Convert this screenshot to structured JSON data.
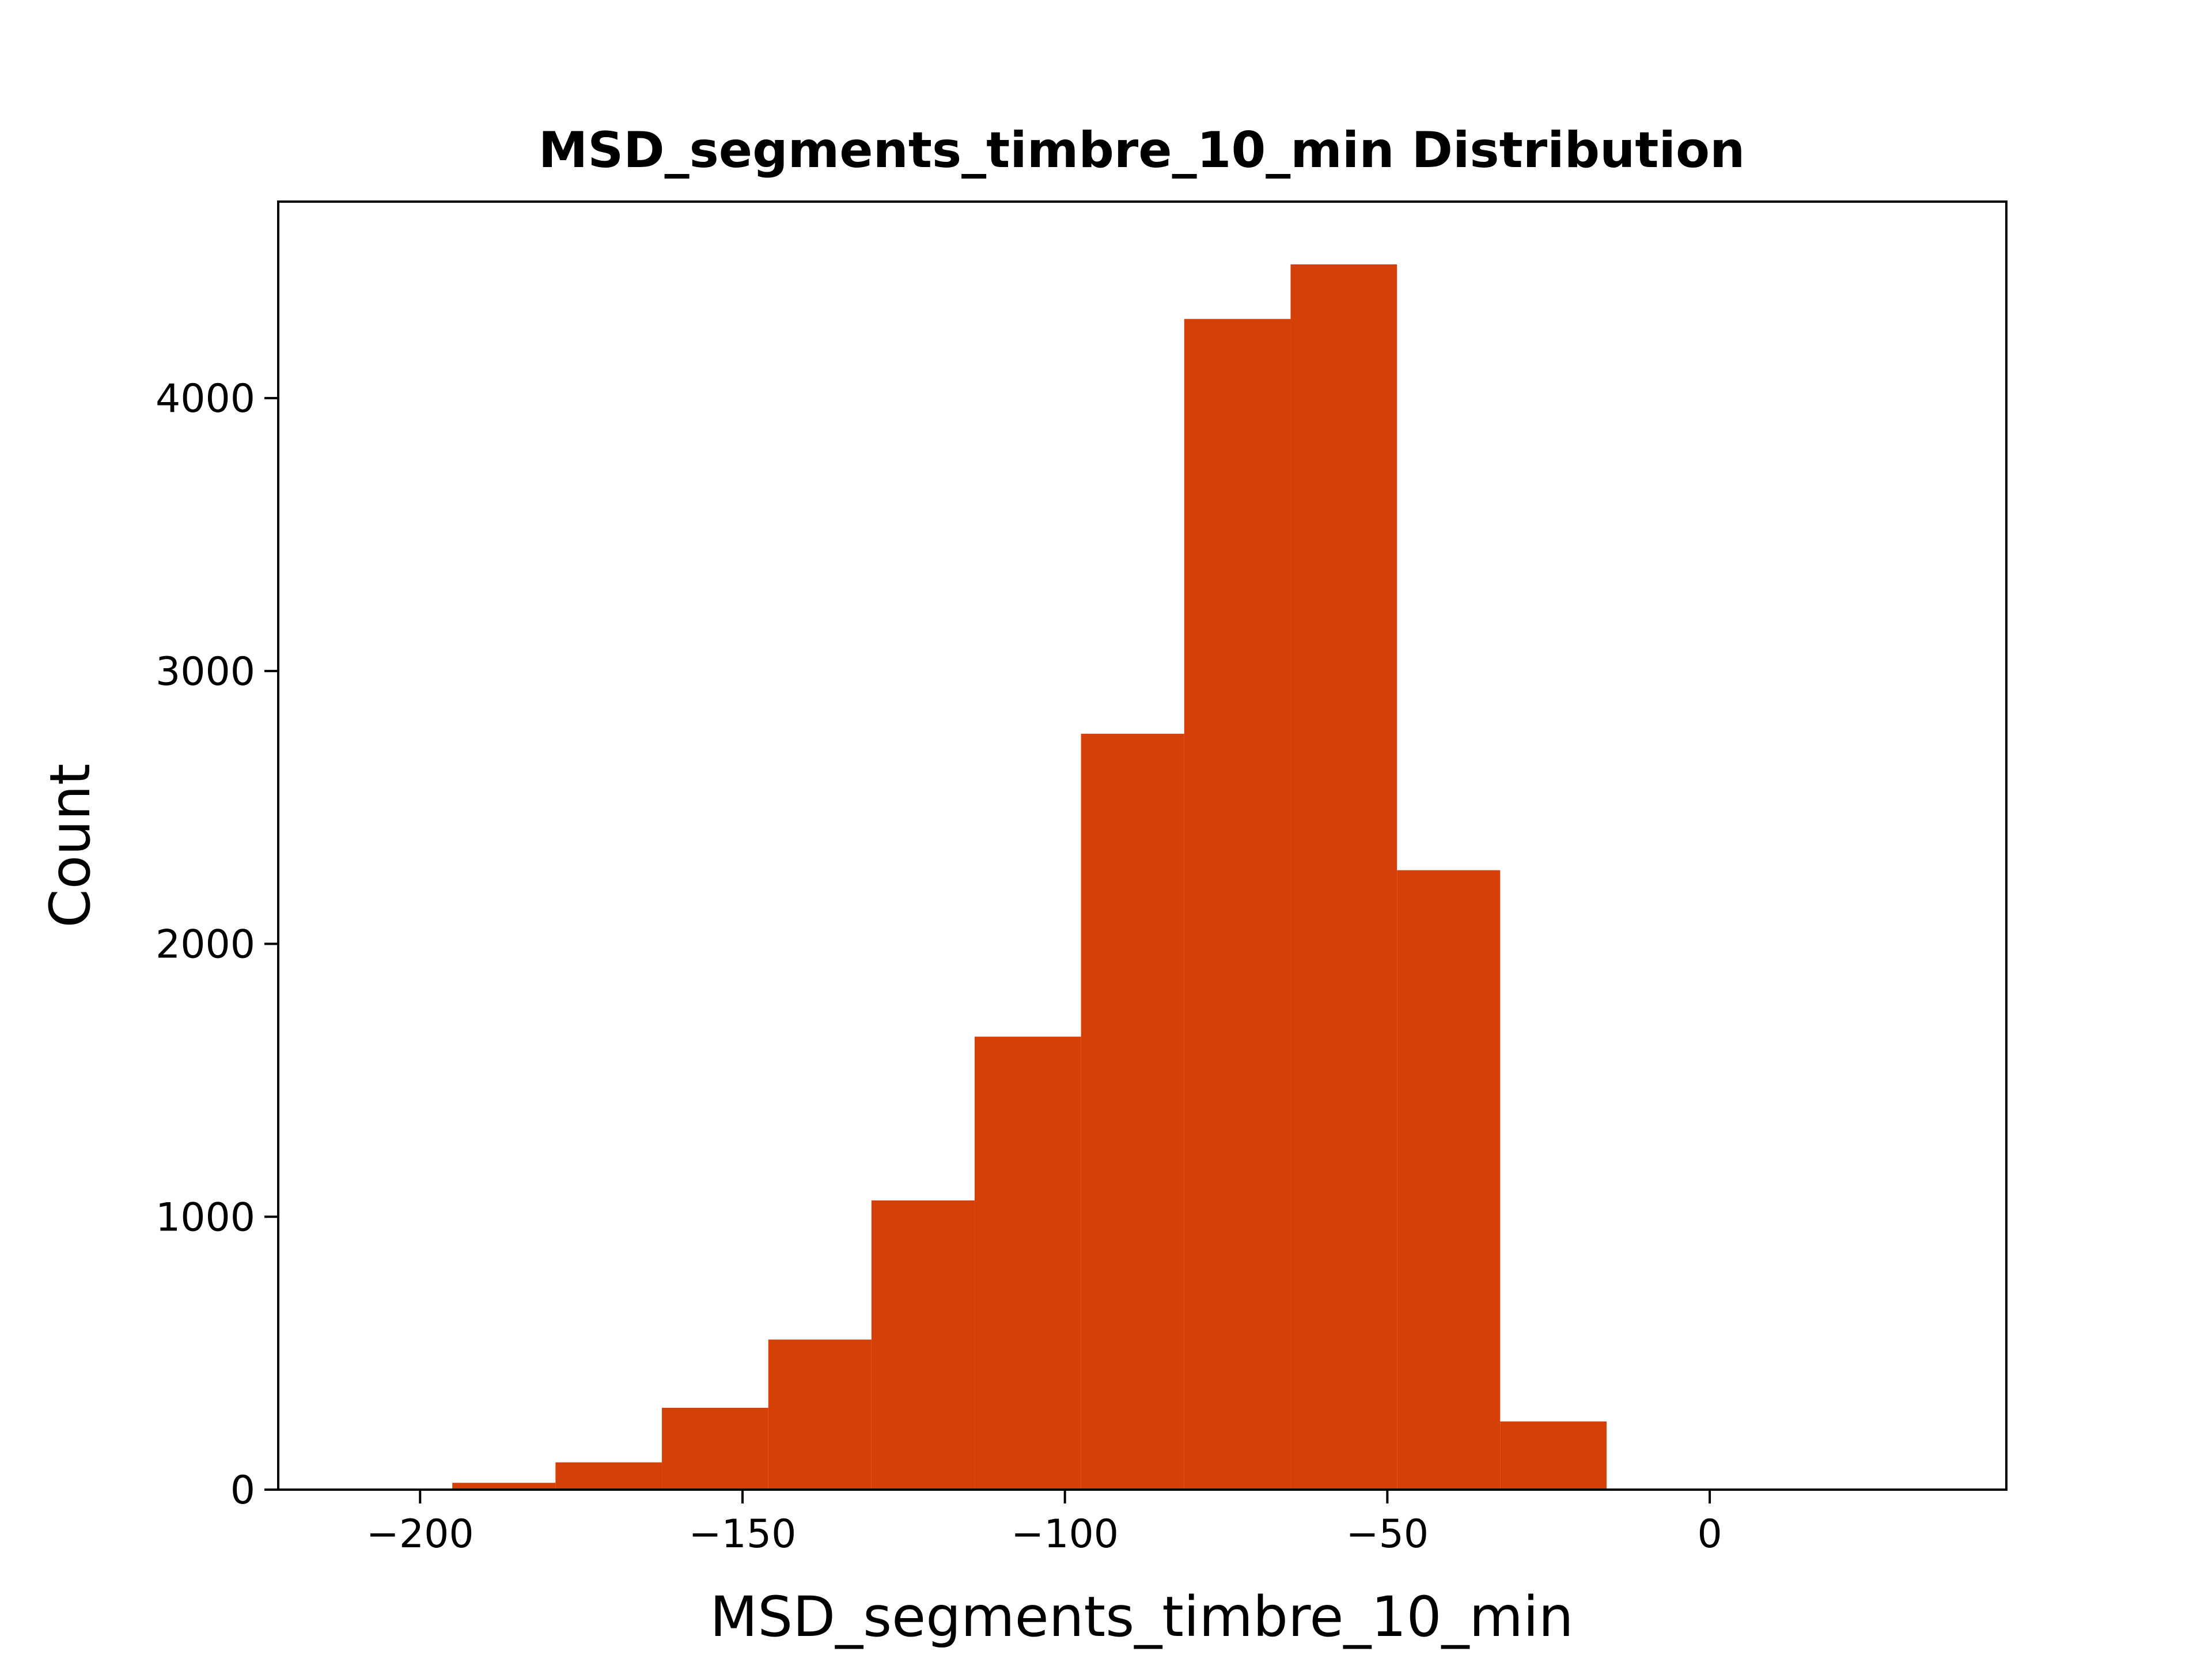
{
  "chart_data": {
    "type": "bar",
    "title": "MSD_segments_timbre_10_min Distribution",
    "xlabel": "MSD_segments_timbre_10_min",
    "ylabel": "Count",
    "xlim": [
      -222,
      46
    ],
    "ylim": [
      0,
      4720
    ],
    "xticks": [
      {
        "value": -200,
        "label": "−200"
      },
      {
        "value": -150,
        "label": "−150"
      },
      {
        "value": -100,
        "label": "−100"
      },
      {
        "value": -50,
        "label": "−50"
      },
      {
        "value": 0,
        "label": "0"
      }
    ],
    "yticks": [
      {
        "value": 0,
        "label": "0"
      },
      {
        "value": 1000,
        "label": "1000"
      },
      {
        "value": 2000,
        "label": "2000"
      },
      {
        "value": 3000,
        "label": "3000"
      },
      {
        "value": 4000,
        "label": "4000"
      }
    ],
    "bins": [
      {
        "x0": -211,
        "x1": -195,
        "count": 3
      },
      {
        "x0": -195,
        "x1": -179,
        "count": 25
      },
      {
        "x0": -179,
        "x1": -162.5,
        "count": 100
      },
      {
        "x0": -162.5,
        "x1": -146,
        "count": 300
      },
      {
        "x0": -146,
        "x1": -130,
        "count": 550
      },
      {
        "x0": -130,
        "x1": -114,
        "count": 1060
      },
      {
        "x0": -114,
        "x1": -97.5,
        "count": 1660
      },
      {
        "x0": -97.5,
        "x1": -81.5,
        "count": 2770
      },
      {
        "x0": -81.5,
        "x1": -65,
        "count": 4290
      },
      {
        "x0": -65,
        "x1": -48.5,
        "count": 4490
      },
      {
        "x0": -48.5,
        "x1": -32.5,
        "count": 2270
      },
      {
        "x0": -32.5,
        "x1": -16,
        "count": 250
      },
      {
        "x0": -16,
        "x1": 0,
        "count": 3
      },
      {
        "x0": 0,
        "x1": 16,
        "count": 0
      },
      {
        "x0": 16,
        "x1": 32.5,
        "count": 2
      }
    ],
    "bar_color": "#d54008",
    "grid": false,
    "legend": "none"
  }
}
